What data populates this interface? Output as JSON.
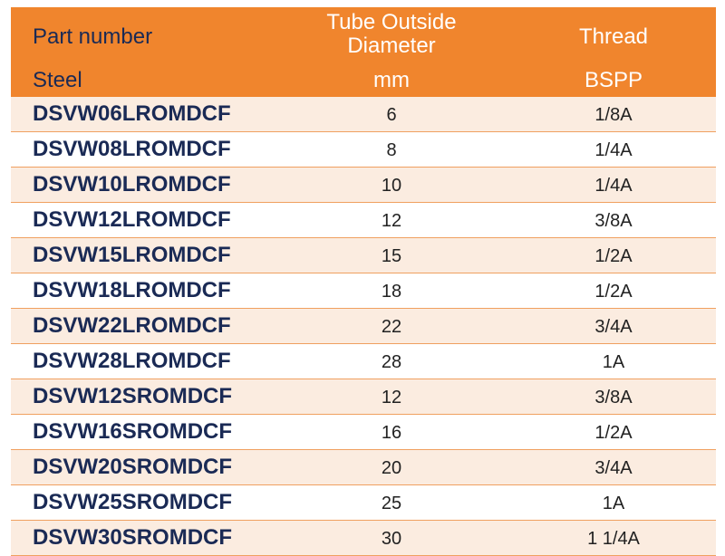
{
  "header": {
    "part_number": "Part number",
    "steel": "Steel",
    "tube_od_line1": "Tube Outside",
    "tube_od_line2": "Diameter",
    "mm": "mm",
    "thread": "Thread",
    "bspp": "BSPP"
  },
  "colors": {
    "header_bg": "#f0852d",
    "row_alt_bg": "#fbece0",
    "part_text": "#1a2a55"
  },
  "rows": [
    {
      "part": "DSVW06LROMDCF",
      "od": "6",
      "thread": "1/8A"
    },
    {
      "part": "DSVW08LROMDCF",
      "od": "8",
      "thread": "1/4A"
    },
    {
      "part": "DSVW10LROMDCF",
      "od": "10",
      "thread": "1/4A"
    },
    {
      "part": "DSVW12LROMDCF",
      "od": "12",
      "thread": "3/8A"
    },
    {
      "part": "DSVW15LROMDCF",
      "od": "15",
      "thread": "1/2A"
    },
    {
      "part": "DSVW18LROMDCF",
      "od": "18",
      "thread": "1/2A"
    },
    {
      "part": "DSVW22LROMDCF",
      "od": "22",
      "thread": "3/4A"
    },
    {
      "part": "DSVW28LROMDCF",
      "od": "28",
      "thread": "1A"
    },
    {
      "part": "DSVW12SROMDCF",
      "od": "12",
      "thread": "3/8A"
    },
    {
      "part": "DSVW16SROMDCF",
      "od": "16",
      "thread": "1/2A"
    },
    {
      "part": "DSVW20SROMDCF",
      "od": "20",
      "thread": "3/4A"
    },
    {
      "part": "DSVW25SROMDCF",
      "od": "25",
      "thread": "1A"
    },
    {
      "part": "DSVW30SROMDCF",
      "od": "30",
      "thread": "1 1/4A"
    }
  ]
}
